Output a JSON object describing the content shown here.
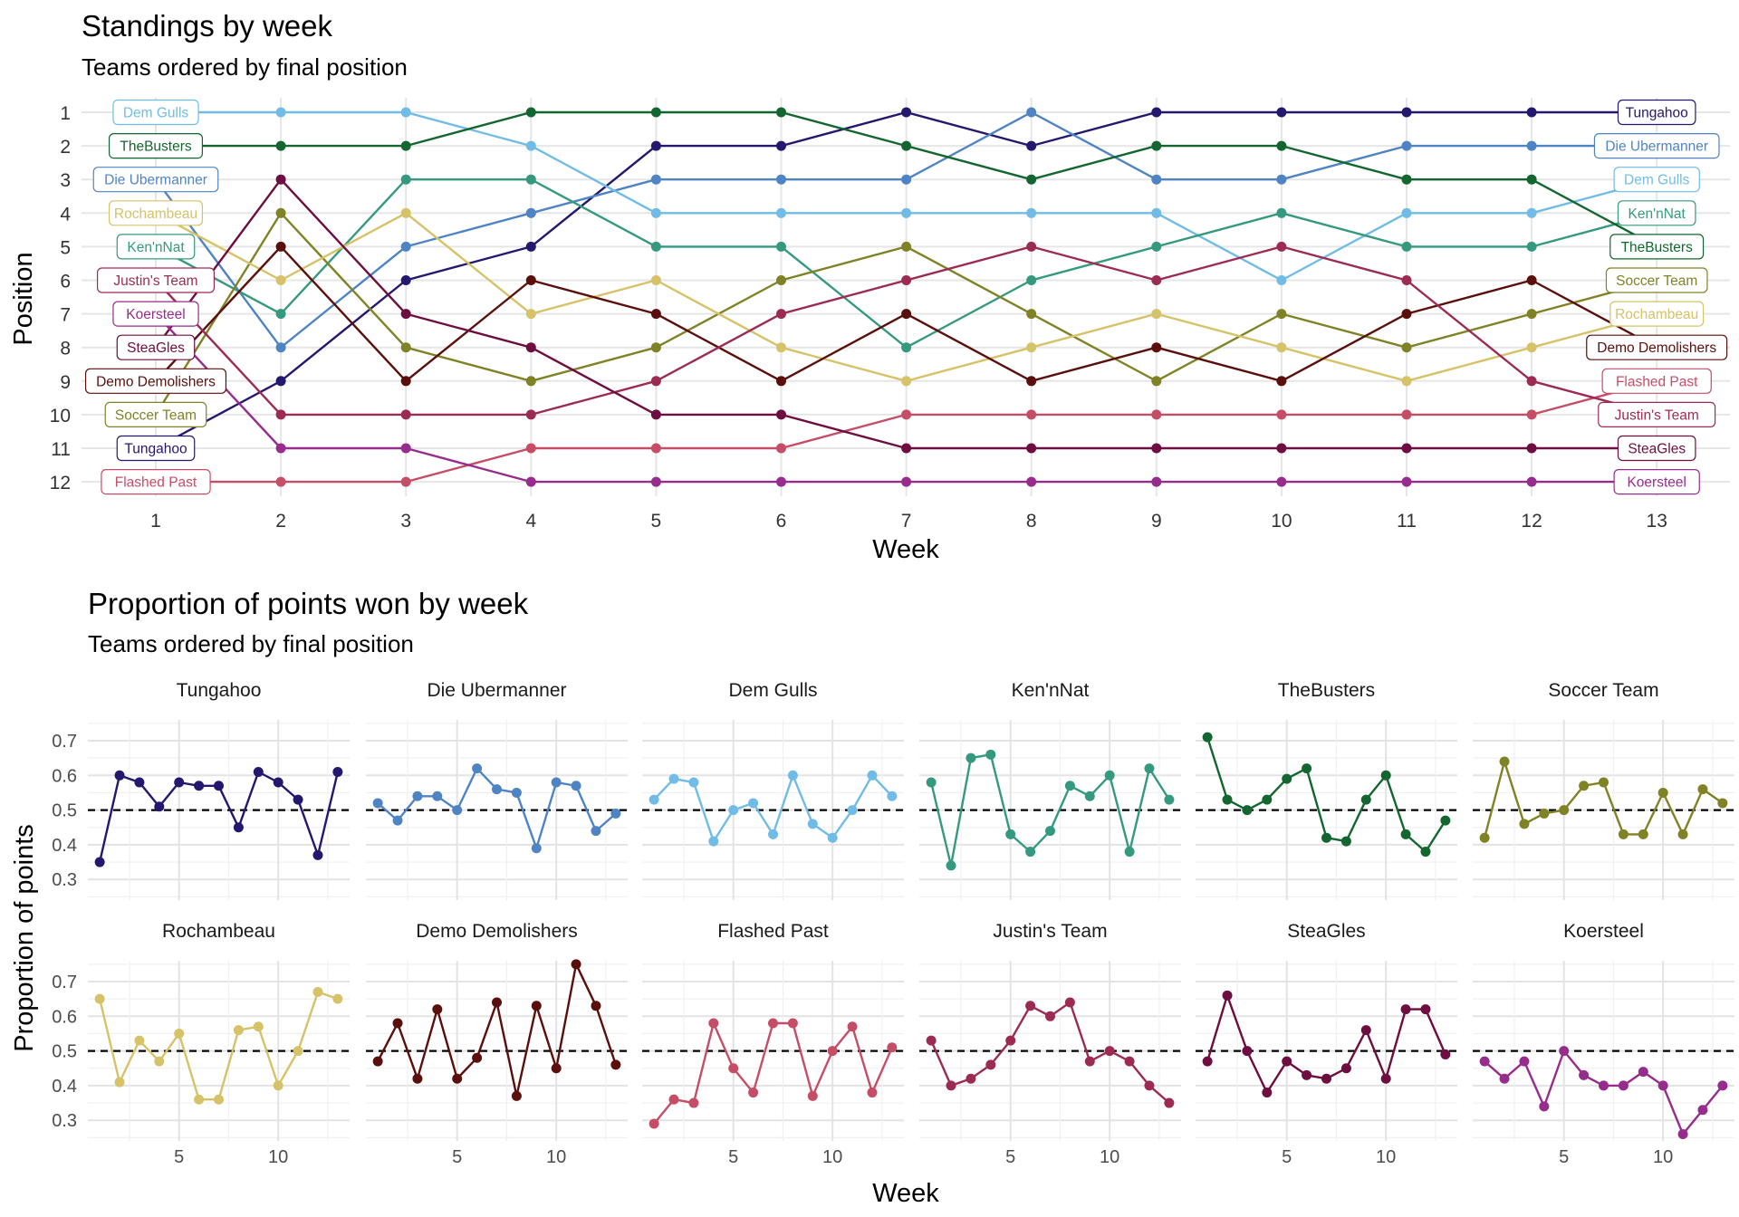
{
  "chart_data": [
    {
      "type": "line",
      "title": "Standings by week",
      "subtitle": "Teams ordered by final position",
      "xlabel": "Week",
      "ylabel": "Position",
      "x": [
        1,
        2,
        3,
        4,
        5,
        6,
        7,
        8,
        9,
        10,
        11,
        12,
        13
      ],
      "xlim": [
        1,
        13
      ],
      "ylim": [
        1,
        12
      ],
      "y_reversed": true,
      "y_ticks": [
        1,
        2,
        3,
        4,
        5,
        6,
        7,
        8,
        9,
        10,
        11,
        12
      ],
      "x_ticks": [
        1,
        2,
        3,
        4,
        5,
        6,
        7,
        8,
        9,
        10,
        11,
        12,
        13
      ],
      "grid": true,
      "labels": "boxed team names at week 1 and week 13",
      "series": [
        {
          "name": "Tungahoo",
          "color": "#23186e",
          "values": [
            11,
            9,
            6,
            5,
            2,
            2,
            1,
            2,
            1,
            1,
            1,
            1,
            1
          ]
        },
        {
          "name": "Die Ubermanner",
          "color": "#4f84c4",
          "values": [
            3,
            8,
            5,
            4,
            3,
            3,
            3,
            1,
            3,
            3,
            2,
            2,
            2
          ]
        },
        {
          "name": "Dem Gulls",
          "color": "#71bce6",
          "values": [
            1,
            1,
            1,
            2,
            4,
            4,
            4,
            4,
            4,
            6,
            4,
            4,
            3
          ]
        },
        {
          "name": "Ken'nNat",
          "color": "#35997f",
          "values": [
            5,
            7,
            3,
            3,
            5,
            5,
            8,
            6,
            5,
            4,
            5,
            5,
            4
          ]
        },
        {
          "name": "TheBusters",
          "color": "#13662f",
          "values": [
            2,
            2,
            2,
            1,
            1,
            1,
            2,
            3,
            2,
            2,
            3,
            3,
            5
          ]
        },
        {
          "name": "Soccer Team",
          "color": "#808226",
          "values": [
            10,
            4,
            8,
            9,
            8,
            6,
            5,
            7,
            9,
            7,
            8,
            7,
            6
          ]
        },
        {
          "name": "Rochambeau",
          "color": "#d6c268",
          "values": [
            4,
            6,
            4,
            7,
            6,
            8,
            9,
            8,
            7,
            8,
            9,
            8,
            7
          ]
        },
        {
          "name": "Demo Demolishers",
          "color": "#5a0f0c",
          "values": [
            9,
            5,
            9,
            6,
            7,
            9,
            7,
            9,
            8,
            9,
            7,
            6,
            8
          ]
        },
        {
          "name": "Flashed Past",
          "color": "#c64d66",
          "values": [
            12,
            12,
            12,
            11,
            11,
            11,
            10,
            10,
            10,
            10,
            10,
            10,
            9
          ]
        },
        {
          "name": "Justin's Team",
          "color": "#9c2b54",
          "values": [
            6,
            10,
            10,
            10,
            9,
            7,
            6,
            5,
            6,
            5,
            6,
            9,
            10
          ]
        },
        {
          "name": "SteaGles",
          "color": "#6e0d3f",
          "values": [
            8,
            3,
            7,
            8,
            10,
            10,
            11,
            11,
            11,
            11,
            11,
            11,
            11
          ]
        },
        {
          "name": "Koersteel",
          "color": "#962c8b",
          "values": [
            7,
            11,
            11,
            12,
            12,
            12,
            12,
            12,
            12,
            12,
            12,
            12,
            12
          ]
        }
      ]
    },
    {
      "type": "line",
      "title": "Proportion of points won by week",
      "subtitle": "Teams ordered by final position",
      "xlabel": "Week",
      "ylabel": "Proportion of points",
      "facets": "by team, 6 columns x 2 rows, shared axes",
      "x": [
        1,
        2,
        3,
        4,
        5,
        6,
        7,
        8,
        9,
        10,
        11,
        12,
        13
      ],
      "x_ticks": [
        5,
        10
      ],
      "y_ticks": [
        0.3,
        0.4,
        0.5,
        0.6,
        0.7
      ],
      "xlim": [
        0.4,
        13.6
      ],
      "ylim": [
        0.24,
        0.76
      ],
      "reference_line": {
        "y": 0.5,
        "style": "dashed",
        "color": "#000000"
      },
      "grid": true,
      "series": [
        {
          "name": "Tungahoo",
          "color": "#23186e",
          "values": [
            0.35,
            0.6,
            0.58,
            0.51,
            0.58,
            0.57,
            0.57,
            0.45,
            0.61,
            0.58,
            0.53,
            0.37,
            0.61
          ]
        },
        {
          "name": "Die Ubermanner",
          "color": "#4f84c4",
          "values": [
            0.52,
            0.47,
            0.54,
            0.54,
            0.5,
            0.62,
            0.56,
            0.55,
            0.39,
            0.58,
            0.57,
            0.44,
            0.49
          ]
        },
        {
          "name": "Dem Gulls",
          "color": "#71bce6",
          "values": [
            0.53,
            0.59,
            0.58,
            0.41,
            0.5,
            0.52,
            0.43,
            0.6,
            0.46,
            0.42,
            0.5,
            0.6,
            0.54
          ]
        },
        {
          "name": "Ken'nNat",
          "color": "#35997f",
          "values": [
            0.58,
            0.34,
            0.65,
            0.66,
            0.43,
            0.38,
            0.44,
            0.57,
            0.54,
            0.6,
            0.38,
            0.62,
            0.53
          ]
        },
        {
          "name": "TheBusters",
          "color": "#13662f",
          "values": [
            0.71,
            0.53,
            0.5,
            0.53,
            0.59,
            0.62,
            0.42,
            0.41,
            0.53,
            0.6,
            0.43,
            0.38,
            0.47
          ]
        },
        {
          "name": "Soccer Team",
          "color": "#808226",
          "values": [
            0.42,
            0.64,
            0.46,
            0.49,
            0.5,
            0.57,
            0.58,
            0.43,
            0.43,
            0.55,
            0.43,
            0.56,
            0.52
          ]
        },
        {
          "name": "Rochambeau",
          "color": "#d6c268",
          "values": [
            0.65,
            0.41,
            0.53,
            0.47,
            0.55,
            0.36,
            0.36,
            0.56,
            0.57,
            0.4,
            0.5,
            0.67,
            0.65
          ]
        },
        {
          "name": "Demo Demolishers",
          "color": "#5a0f0c",
          "values": [
            0.47,
            0.58,
            0.42,
            0.62,
            0.42,
            0.48,
            0.64,
            0.37,
            0.63,
            0.45,
            0.75,
            0.63,
            0.46
          ]
        },
        {
          "name": "Flashed Past",
          "color": "#c64d66",
          "values": [
            0.29,
            0.36,
            0.35,
            0.58,
            0.45,
            0.38,
            0.58,
            0.58,
            0.37,
            0.5,
            0.57,
            0.38,
            0.51
          ]
        },
        {
          "name": "Justin's Team",
          "color": "#9c2b54",
          "values": [
            0.53,
            0.4,
            0.42,
            0.46,
            0.53,
            0.63,
            0.6,
            0.64,
            0.47,
            0.5,
            0.47,
            0.4,
            0.35
          ]
        },
        {
          "name": "SteaGles",
          "color": "#6e0d3f",
          "values": [
            0.47,
            0.66,
            0.5,
            0.38,
            0.47,
            0.43,
            0.42,
            0.45,
            0.56,
            0.42,
            0.62,
            0.62,
            0.49
          ]
        },
        {
          "name": "Koersteel",
          "color": "#962c8b",
          "values": [
            0.47,
            0.42,
            0.47,
            0.34,
            0.5,
            0.43,
            0.4,
            0.4,
            0.44,
            0.4,
            0.26,
            0.33,
            0.4
          ]
        }
      ]
    }
  ]
}
